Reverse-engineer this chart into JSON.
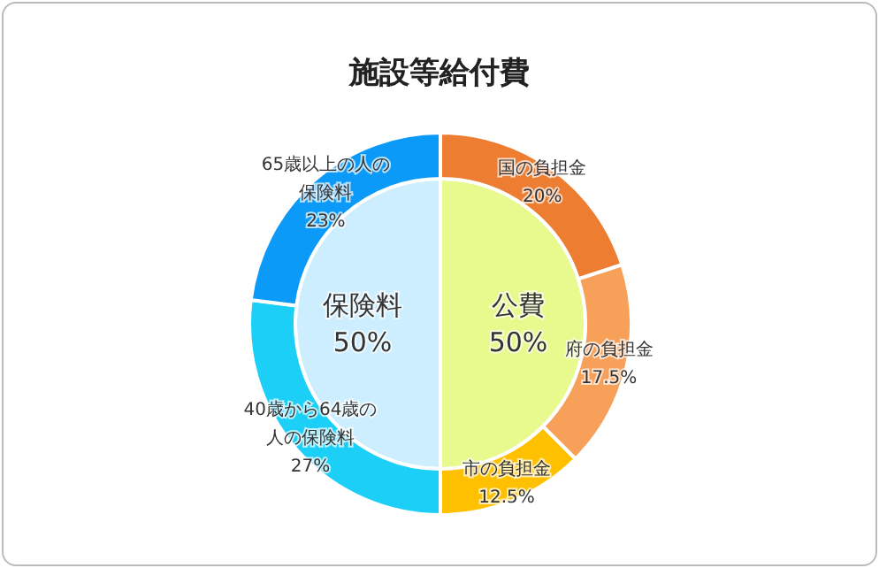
{
  "chart_data": [
    {
      "type": "donut",
      "title": "施設等給付費",
      "categories": [
        "国の負担金",
        "府の負担金",
        "市の負担金",
        "40歳から64歳の人の保険料",
        "65歳以上の人の保険料"
      ],
      "values": [
        20,
        17.5,
        12.5,
        27,
        23
      ],
      "colors": [
        "#ed7d31",
        "#f7a05a",
        "#ffc000",
        "#1ccff7",
        "#0b9af7"
      ],
      "value_labels": [
        "20%",
        "17.5%",
        "12.5%",
        "27%",
        "23%"
      ]
    },
    {
      "type": "pie",
      "categories": [
        "公費",
        "保険料"
      ],
      "values": [
        50,
        50
      ],
      "colors": [
        "#e8f98e",
        "#cdeeff"
      ],
      "value_labels": [
        "50%",
        "50%"
      ]
    }
  ]
}
